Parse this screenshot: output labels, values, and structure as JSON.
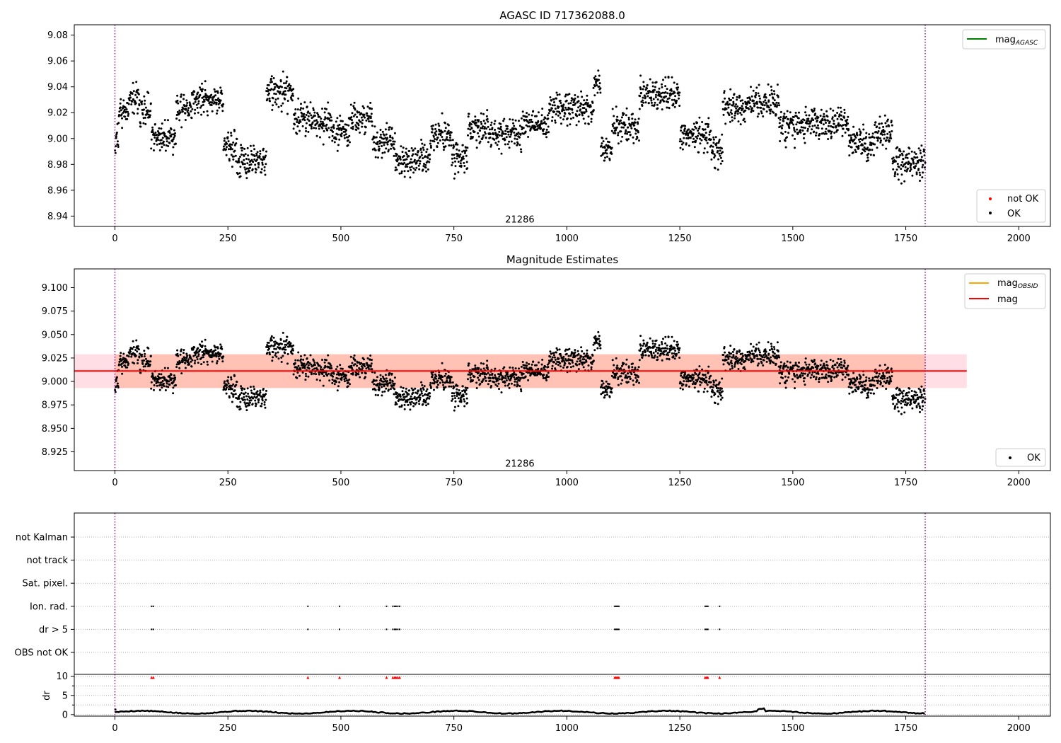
{
  "figure": {
    "background": "#ffffff"
  },
  "colors": {
    "ok": "#000000",
    "not_ok": "#ff0000",
    "obs_line": "#800080",
    "mag_agasc": "#008000",
    "mag_obsid": "#ffa500",
    "mag": "#ff0000",
    "band_pink": "#ffc0cb",
    "band_orange": "#ffa07a",
    "grid": "#b0b0b0"
  },
  "chart_data": [
    {
      "type": "scatter",
      "title": "AGASC ID 717362088.0",
      "xlim": [
        -90,
        2070
      ],
      "ylim": [
        8.932,
        9.088
      ],
      "xticks": [
        0,
        250,
        500,
        750,
        1000,
        1250,
        1500,
        1750,
        2000
      ],
      "yticks": [
        "8.94",
        "8.96",
        "8.98",
        "9.00",
        "9.02",
        "9.04",
        "9.06",
        "9.08"
      ],
      "obs_boundaries": [
        0,
        1793
      ],
      "obsid_label": {
        "text": "21286",
        "x": 896,
        "y": 8.935
      },
      "legend_lines": [
        {
          "label": "mag",
          "sub": "AGASC",
          "color": "#008000"
        }
      ],
      "legend_markers": [
        {
          "label": "not OK",
          "color": "#ff0000"
        },
        {
          "label": "OK",
          "color": "#000000"
        }
      ],
      "series": [
        {
          "name": "OK",
          "kind": "points",
          "seed": 11
        }
      ]
    },
    {
      "type": "scatter",
      "title": "Magnitude Estimates",
      "xlim": [
        -90,
        2070
      ],
      "ylim": [
        8.905,
        9.12
      ],
      "xticks": [
        0,
        250,
        500,
        750,
        1000,
        1250,
        1500,
        1750,
        2000
      ],
      "yticks": [
        "8.925",
        "8.950",
        "8.975",
        "9.000",
        "9.025",
        "9.050",
        "9.075",
        "9.100"
      ],
      "obs_boundaries": [
        0,
        1793
      ],
      "obsid_label": {
        "text": "21286",
        "x": 896,
        "y": 8.909
      },
      "mag": 9.0112,
      "mag_band": [
        8.993,
        9.029
      ],
      "band_x": [
        -90,
        1885
      ],
      "legend_lines": [
        {
          "label": "mag",
          "sub": "OBSID",
          "color": "#ffa500"
        },
        {
          "label": "mag",
          "sub": "",
          "color": "#ff0000"
        }
      ],
      "legend_markers": [
        {
          "label": "OK",
          "color": "#000000"
        }
      ],
      "series": [
        {
          "name": "OK",
          "kind": "points",
          "seed": 11
        }
      ]
    },
    {
      "type": "scatter",
      "xlim": [
        -90,
        2070
      ],
      "flag_categories": [
        "not Kalman",
        "not track",
        "Sat. pixel.",
        "Ion. rad.",
        "dr > 5",
        "OBS not OK"
      ],
      "flag_events": {
        "Ion. rad.": [
          81,
          85,
          427,
          497,
          601,
          615,
          619,
          622,
          626,
          630,
          1106,
          1109,
          1112,
          1115,
          1306,
          1309,
          1312,
          1338
        ],
        "dr > 5": [
          81,
          85,
          427,
          497,
          601,
          615,
          619,
          622,
          626,
          630,
          1106,
          1109,
          1112,
          1115,
          1306,
          1309,
          1312,
          1338
        ]
      },
      "dr_ylim": [
        -0.4,
        10.5
      ],
      "dr_yticks": [
        0,
        5,
        10
      ],
      "dr_ylabel": "dr",
      "dr_markers": [
        81,
        85,
        427,
        497,
        601,
        615,
        619,
        622,
        626,
        630,
        1106,
        1109,
        1112,
        1115,
        1306,
        1309,
        1312,
        1338
      ],
      "xticks": [
        0,
        250,
        500,
        750,
        1000,
        1250,
        1500,
        1750,
        2000
      ],
      "obs_boundaries": [
        0,
        1793
      ]
    }
  ]
}
